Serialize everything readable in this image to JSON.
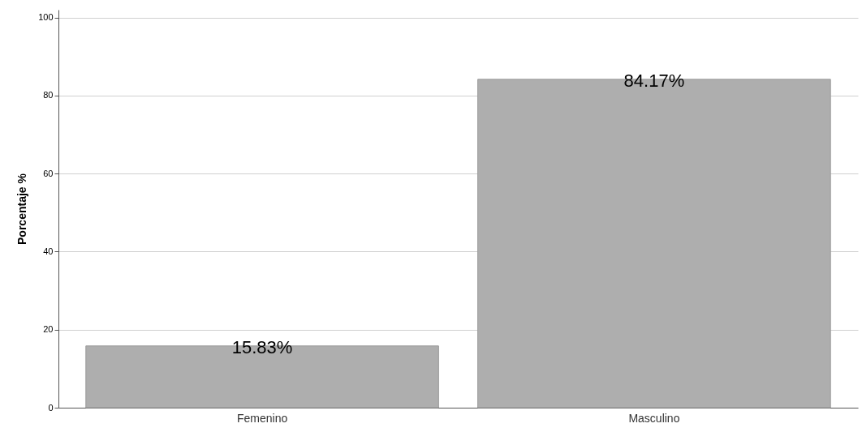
{
  "chart_data": {
    "type": "bar",
    "ylabel": "Porcentaje %",
    "categories": [
      "Femenino",
      "Masculino"
    ],
    "values": [
      15.83,
      84.17
    ],
    "value_labels": [
      "15.83%",
      "84.17%"
    ],
    "color": "#aeaeae",
    "ylim": [
      0,
      102
    ],
    "yticks": [
      0,
      20,
      40,
      60,
      80,
      100
    ],
    "grid": "y"
  }
}
